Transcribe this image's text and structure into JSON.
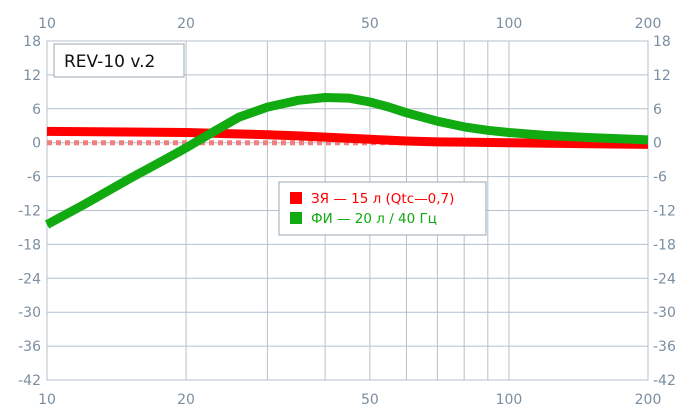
{
  "chart_data": {
    "type": "line",
    "title": "REV-10 v.2",
    "x_scale": "log",
    "xlim": [
      10,
      200
    ],
    "ylim": [
      -42,
      18
    ],
    "x_major_ticks": [
      10,
      20,
      50,
      100,
      200
    ],
    "x_tick_labels": [
      "10",
      "20",
      "50",
      "100",
      "200"
    ],
    "y_ticks": [
      18,
      12,
      6,
      0,
      -6,
      -12,
      -18,
      -24,
      -30,
      -36,
      -42
    ],
    "y_tick_labels": [
      "18",
      "12",
      "6",
      "0",
      "-6",
      "-12",
      "-18",
      "-24",
      "-30",
      "-36",
      "-42"
    ],
    "grid": true,
    "reference_line": {
      "y": 0,
      "color": "#f08080",
      "style": "dotted"
    },
    "series": [
      {
        "name": "ЗЯ — 15 л (Qtc—0,7)",
        "color": "#ff0000",
        "x": [
          10,
          15,
          20,
          25,
          30,
          35,
          40,
          50,
          60,
          70,
          80,
          100,
          150,
          200
        ],
        "y": [
          2.0,
          1.9,
          1.8,
          1.6,
          1.4,
          1.2,
          1.0,
          0.6,
          0.3,
          0.15,
          0.1,
          0.0,
          -0.2,
          -0.3
        ]
      },
      {
        "name": "ФИ — 20 л / 40 Гц",
        "color": "#11aa11",
        "x": [
          10,
          12,
          15,
          18,
          20,
          23,
          26,
          30,
          35,
          40,
          45,
          50,
          55,
          60,
          70,
          80,
          90,
          100,
          120,
          150,
          200
        ],
        "y": [
          -14.5,
          -11.0,
          -6.5,
          -3.0,
          -0.9,
          2.0,
          4.5,
          6.3,
          7.5,
          8.0,
          7.9,
          7.2,
          6.3,
          5.3,
          3.8,
          2.8,
          2.2,
          1.8,
          1.3,
          0.9,
          0.5
        ]
      }
    ],
    "legend": {
      "placement": "center-right"
    }
  }
}
